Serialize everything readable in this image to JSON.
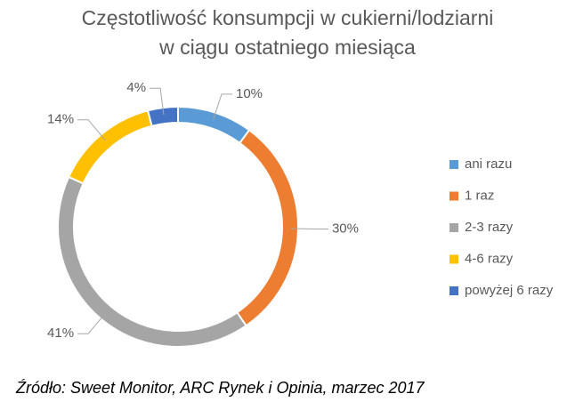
{
  "chart_data": {
    "type": "donut",
    "title": [
      "Częstotliwość konsumpcji w cukierni/lodziarni",
      "w ciągu ostatniego miesiąca"
    ],
    "categories": [
      "ani razu",
      "1 raz",
      "2-3 razy",
      "4-6 razy",
      "powyżej 6 razy"
    ],
    "values": [
      10,
      30,
      41,
      14,
      4
    ],
    "value_labels": [
      "10%",
      "30%",
      "41%",
      "14%",
      "4%"
    ],
    "colors": [
      "#5b9bd5",
      "#ed7d31",
      "#a5a5a5",
      "#ffc000",
      "#4472c4"
    ],
    "legend": "right"
  },
  "source": "Źródło: Sweet Monitor, ARC Rynek i Opinia, marzec 2017"
}
